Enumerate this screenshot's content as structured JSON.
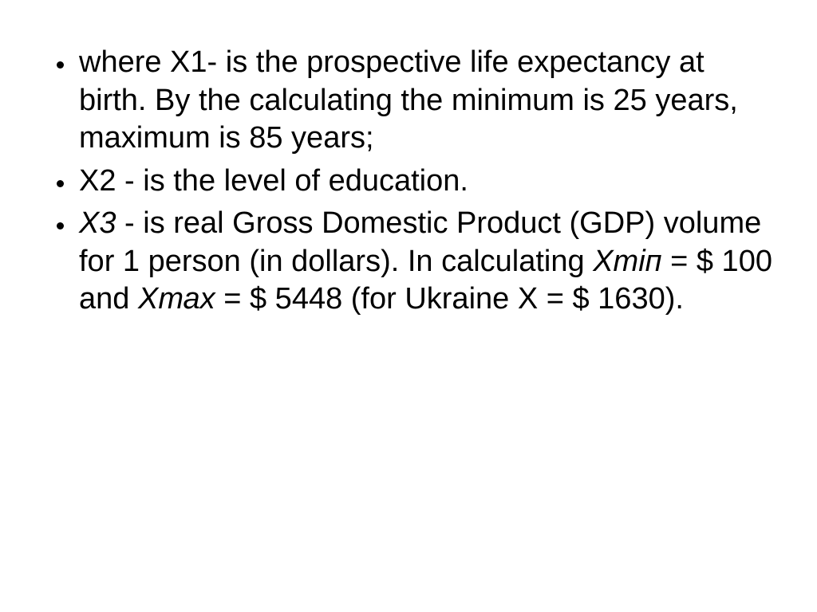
{
  "slide": {
    "background_color": "#ffffff",
    "text_color": "#000000",
    "font_family": "Arial",
    "font_size_pt": 28,
    "bullets": [
      {
        "prefix": "where X1-",
        "rest": " is the prospective life expectancy at birth. By the calculating the minimum is 25 years, maximum is 85 years;"
      },
      {
        "prefix": "X2   - ",
        "rest": "is the level of education."
      },
      {
        "prefix_italic": "Х3",
        "mid": " - is real Gross Domestic Product (GDP) volume for 1 person (in dollars). In calculating ",
        "xmin_italic": "Хтіп",
        "xmin_rest": " = $ 100 and ",
        "xmax_italic": "Хтах",
        "xmax_rest": " = $ 5448 (for Ukraine X = $ 1630)."
      }
    ]
  }
}
